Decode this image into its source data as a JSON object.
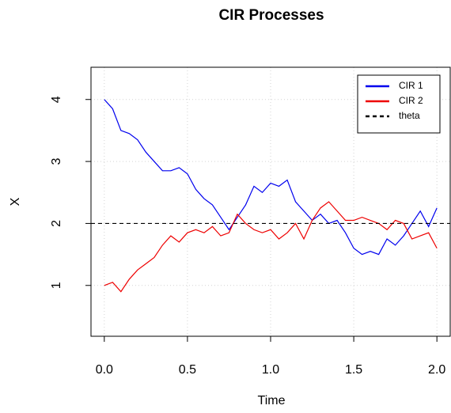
{
  "chart_data": {
    "type": "line",
    "title": "CIR Processes",
    "xlabel": "Time",
    "ylabel": "X",
    "x": [
      0,
      0.05,
      0.1,
      0.15,
      0.2,
      0.25,
      0.3,
      0.35,
      0.4,
      0.45,
      0.5,
      0.55,
      0.6,
      0.65,
      0.7,
      0.75,
      0.8,
      0.85,
      0.9,
      0.95,
      1.0,
      1.05,
      1.1,
      1.15,
      1.2,
      1.25,
      1.3,
      1.35,
      1.4,
      1.45,
      1.5,
      1.55,
      1.6,
      1.65,
      1.7,
      1.75,
      1.8,
      1.85,
      1.9,
      1.95,
      2.0
    ],
    "series": [
      {
        "name": "CIR 1",
        "color": "#0000ee",
        "values": [
          4.0,
          3.85,
          3.5,
          3.45,
          3.35,
          3.15,
          3.0,
          2.85,
          2.85,
          2.9,
          2.8,
          2.55,
          2.4,
          2.3,
          2.1,
          1.9,
          2.1,
          2.3,
          2.6,
          2.5,
          2.65,
          2.6,
          2.7,
          2.35,
          2.2,
          2.05,
          2.15,
          2.0,
          2.05,
          1.85,
          1.6,
          1.5,
          1.55,
          1.5,
          1.75,
          1.65,
          1.8,
          2.0,
          2.2,
          1.95,
          2.25
        ]
      },
      {
        "name": "CIR 2",
        "color": "#ee0000",
        "values": [
          1.0,
          1.05,
          0.9,
          1.1,
          1.25,
          1.35,
          1.45,
          1.65,
          1.8,
          1.7,
          1.85,
          1.9,
          1.85,
          1.95,
          1.8,
          1.85,
          2.15,
          2.0,
          1.9,
          1.85,
          1.9,
          1.75,
          1.85,
          2.0,
          1.75,
          2.05,
          2.25,
          2.35,
          2.2,
          2.05,
          2.05,
          2.1,
          2.05,
          2.0,
          1.9,
          2.05,
          2.0,
          1.75,
          1.8,
          1.85,
          1.6
        ]
      }
    ],
    "hline": {
      "name": "theta",
      "value": 2,
      "color": "#000000"
    },
    "xlim": [
      -0.08,
      2.08
    ],
    "ylim": [
      0.18,
      4.52
    ],
    "xticks": [
      {
        "value": 0,
        "label": "0.0"
      },
      {
        "value": 0.5,
        "label": "0.5"
      },
      {
        "value": 1,
        "label": "1.0"
      },
      {
        "value": 1.5,
        "label": "1.5"
      },
      {
        "value": 2,
        "label": "2.0"
      }
    ],
    "yticks": [
      1,
      2,
      3,
      4
    ],
    "grid": true,
    "legend": "top-right"
  }
}
